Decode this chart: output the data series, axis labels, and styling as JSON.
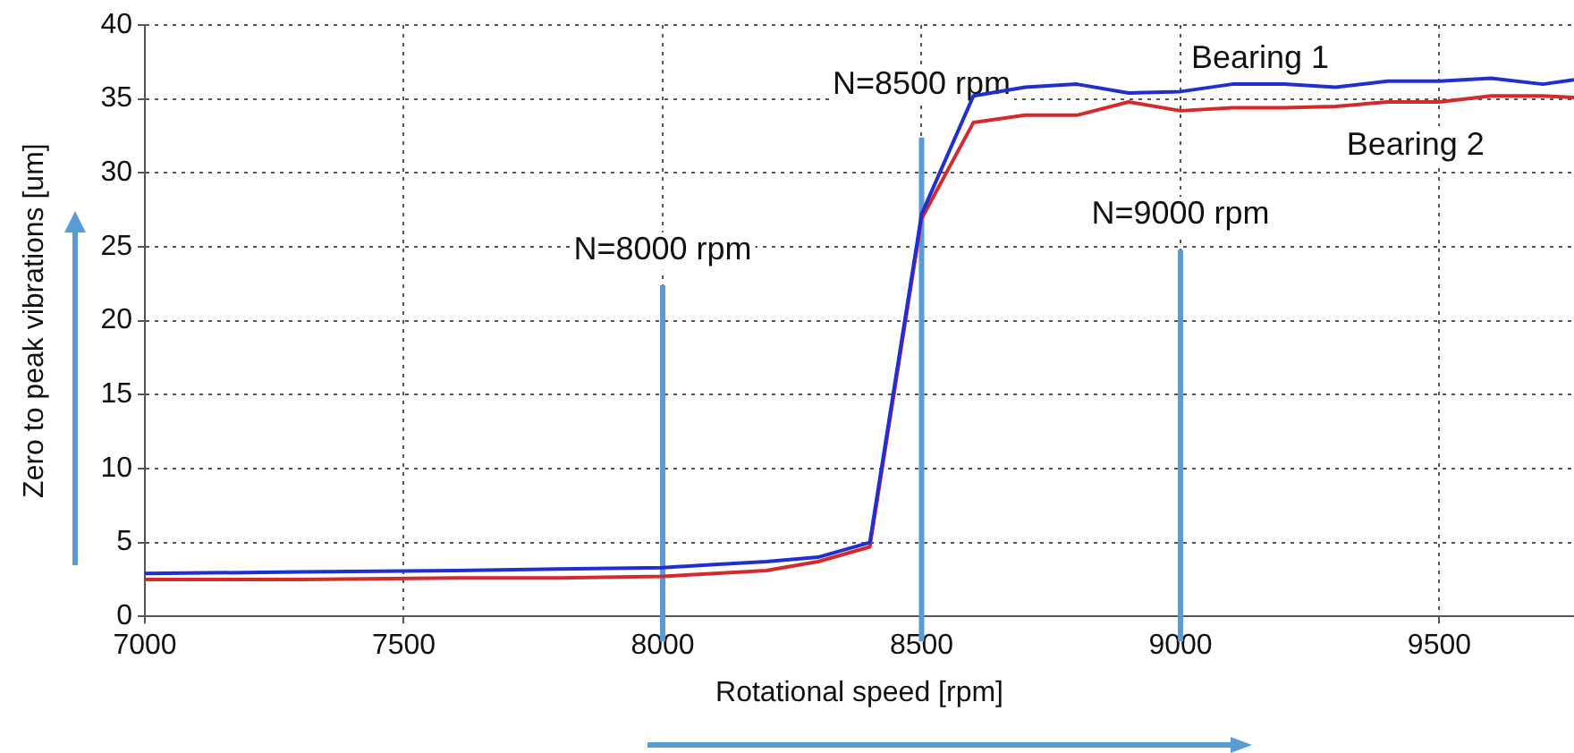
{
  "chart_data": {
    "type": "line",
    "xlabel": "Rotational speed [rpm]",
    "ylabel": "Zero to peak vibrations [um]",
    "x": [
      7000,
      7300,
      7600,
      7800,
      8000,
      8100,
      8200,
      8300,
      8400,
      8500,
      8600,
      8700,
      8800,
      8900,
      9000,
      9100,
      9200,
      9300,
      9400,
      9500,
      9600,
      9700,
      9760
    ],
    "series": [
      {
        "name": "Bearing 1",
        "color": "#1f2fd0",
        "values": [
          2.9,
          3.0,
          3.1,
          3.2,
          3.3,
          3.5,
          3.7,
          4.0,
          5.0,
          27.2,
          35.2,
          35.8,
          36.0,
          35.4,
          35.5,
          36.0,
          36.0,
          35.8,
          36.2,
          36.2,
          36.4,
          36.0,
          36.3
        ]
      },
      {
        "name": "Bearing 2",
        "color": "#d42a2a",
        "values": [
          2.5,
          2.5,
          2.6,
          2.6,
          2.7,
          2.9,
          3.1,
          3.7,
          4.7,
          26.9,
          33.4,
          33.9,
          33.9,
          34.8,
          34.2,
          34.4,
          34.4,
          34.5,
          34.8,
          34.8,
          35.2,
          35.2,
          35.1
        ]
      }
    ],
    "xlim": [
      7000,
      9760
    ],
    "xticks": [
      7000,
      7500,
      8000,
      8500,
      9000,
      9500
    ],
    "ylim": [
      0,
      40
    ],
    "yticks": [
      0,
      5,
      10,
      15,
      20,
      25,
      30,
      35,
      40
    ],
    "grid": true,
    "legend": false,
    "marker": "none",
    "line_style": "solid",
    "ref_lines": [
      {
        "axis": "x",
        "value": 8000,
        "label": "N=8000 rpm",
        "color": "#5b9bd5"
      },
      {
        "axis": "x",
        "value": 8500,
        "label": "N=8500 rpm",
        "color": "#5b9bd5"
      },
      {
        "axis": "x",
        "value": 9000,
        "label": "N=9000 rpm",
        "color": "#5b9bd5"
      }
    ]
  }
}
